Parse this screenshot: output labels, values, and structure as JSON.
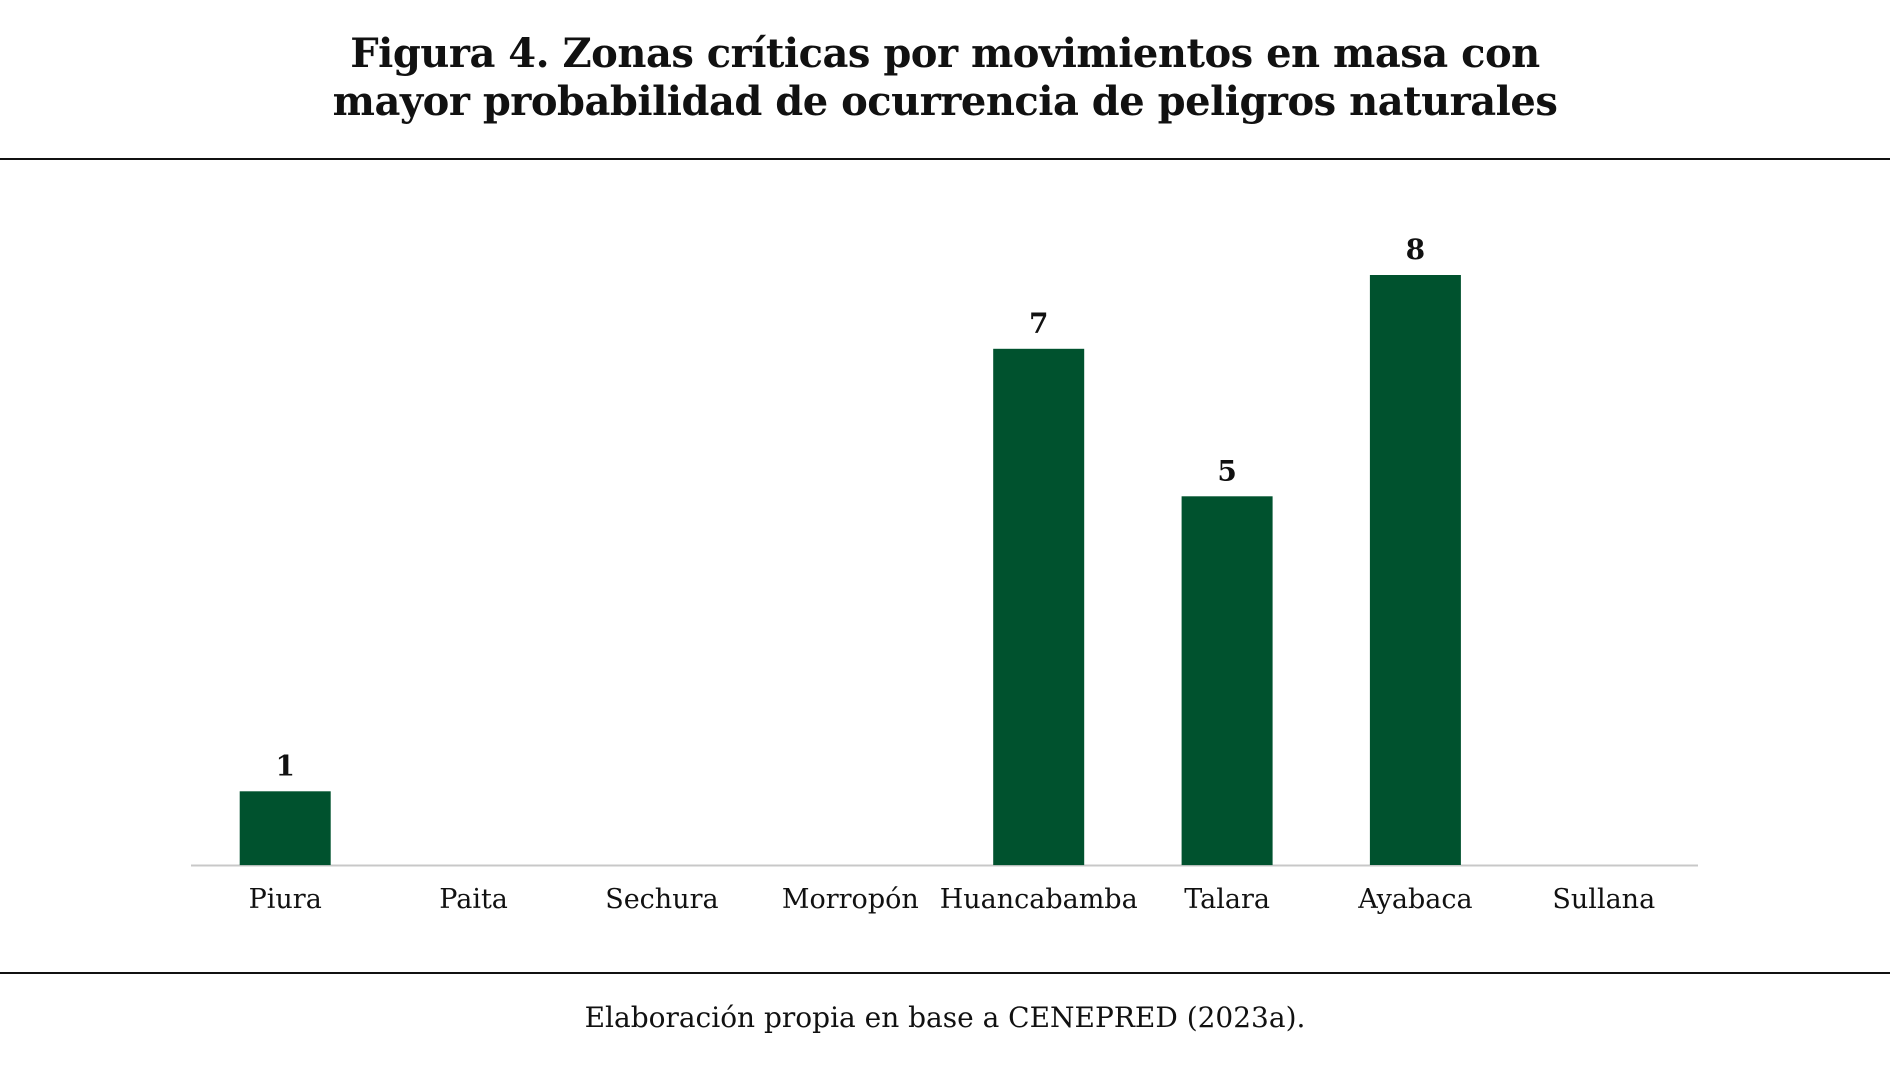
{
  "figure": {
    "title_line1": "Figura 4. Zonas críticas por movimientos en masa con",
    "title_line2": "mayor probabilidad de ocurrencia de peligros naturales",
    "source": "Elaboración propia en base a CENEPRED (2023a)."
  },
  "colors": {
    "bar": "#00522e",
    "axis": "#c8c8c8",
    "text": "#111111"
  },
  "chart_data": {
    "type": "bar",
    "title": "Figura 4. Zonas críticas por movimientos en masa con mayor probabilidad de ocurrencia de peligros naturales",
    "categories": [
      "Piura",
      "Paita",
      "Sechura",
      "Morropón",
      "Huancabamba",
      "Talara",
      "Ayabaca",
      "Sullana"
    ],
    "values": [
      1,
      0,
      0,
      0,
      7,
      5,
      8,
      0
    ],
    "data_labels": [
      "1",
      "",
      "",
      "",
      "7",
      "5",
      "8",
      ""
    ],
    "xlabel": "",
    "ylabel": "",
    "ylim": [
      0,
      8
    ],
    "grid": false,
    "legend": "none"
  }
}
